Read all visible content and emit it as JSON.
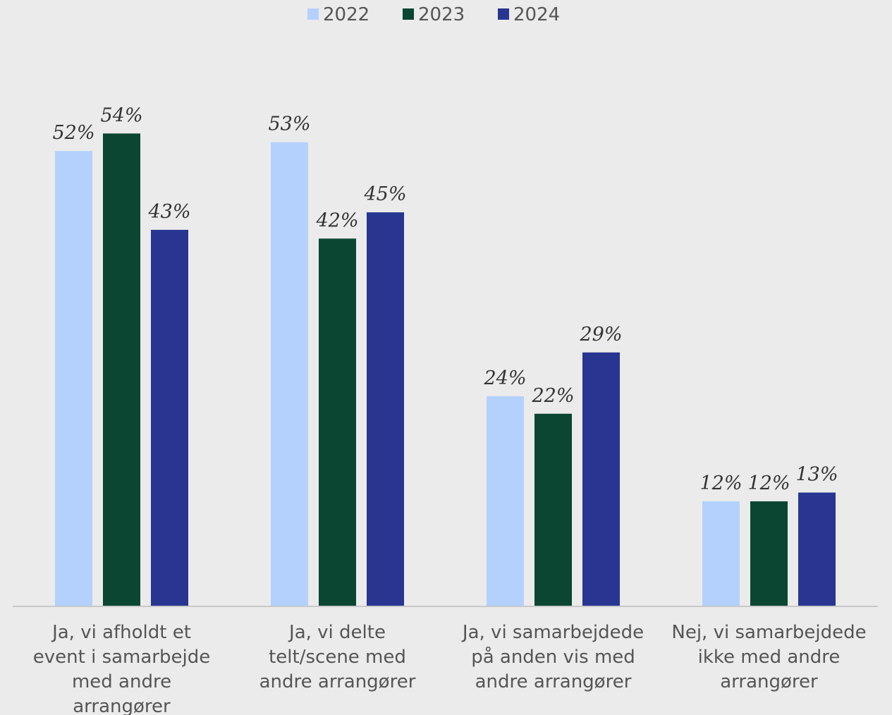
{
  "chart_data": {
    "type": "bar",
    "categories": [
      [
        "Ja, vi afholdt et",
        "event i samarbejde",
        "med andre",
        "arrangører"
      ],
      [
        "Ja, vi delte",
        "telt/scene med",
        "andre arrangører"
      ],
      [
        "Ja, vi samarbejdede",
        "på anden vis med",
        "andre arrangører"
      ],
      [
        "Nej, vi samarbejdede",
        "ikke med andre",
        "arrangører"
      ]
    ],
    "series": [
      {
        "name": "2022",
        "color": "#b3d1fc",
        "values": [
          52,
          53,
          24,
          12
        ],
        "labels": [
          "52%",
          "53%",
          "24%",
          "12%"
        ]
      },
      {
        "name": "2023",
        "color": "#0a4631",
        "values": [
          54,
          42,
          22,
          12
        ],
        "labels": [
          "54%",
          "42%",
          "22%",
          "12%"
        ]
      },
      {
        "name": "2024",
        "color": "#283591",
        "values": [
          43,
          45,
          29,
          13
        ],
        "labels": [
          "43%",
          "45%",
          "29%",
          "13%"
        ]
      }
    ],
    "ylim": [
      0,
      100
    ],
    "grid": false,
    "legend_position": "top-center",
    "title": "",
    "xlabel": "",
    "ylabel": ""
  }
}
